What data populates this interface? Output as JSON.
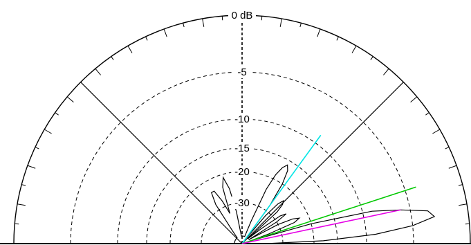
{
  "chart_data": {
    "type": "polar",
    "title": "",
    "angle_range_deg": [
      -90,
      90
    ],
    "rings": [
      {
        "label": "0 dB",
        "value": 0
      },
      {
        "label": "-5",
        "value": -5
      },
      {
        "label": "-10",
        "value": -10
      },
      {
        "label": "-15",
        "value": -15
      },
      {
        "label": "-20",
        "value": -20
      },
      {
        "label": "-30",
        "value": -30
      }
    ],
    "radial_lines_deg": [
      -45,
      0,
      45
    ],
    "pattern": {
      "points": [
        [
          90,
          -34
        ],
        [
          88,
          -18
        ],
        [
          86,
          -9
        ],
        [
          84,
          -5
        ],
        [
          82,
          -3
        ],
        [
          80,
          -3.5
        ],
        [
          78,
          -6
        ],
        [
          76,
          -9
        ],
        [
          74,
          -20
        ],
        [
          72,
          -38
        ],
        [
          70,
          -33
        ],
        [
          68,
          -25
        ],
        [
          66,
          -23
        ],
        [
          64,
          -25
        ],
        [
          62,
          -30
        ],
        [
          60,
          -38
        ],
        [
          58,
          -30
        ],
        [
          56,
          -26
        ],
        [
          54,
          -28
        ],
        [
          52,
          -34
        ],
        [
          50,
          -38
        ],
        [
          48,
          -28
        ],
        [
          46,
          -25
        ],
        [
          44,
          -24
        ],
        [
          42,
          -26
        ],
        [
          40,
          -31
        ],
        [
          38,
          -38
        ],
        [
          36,
          -28
        ],
        [
          34,
          -20
        ],
        [
          32,
          -17
        ],
        [
          30,
          -16
        ],
        [
          28,
          -17
        ],
        [
          26,
          -19
        ],
        [
          24,
          -24
        ],
        [
          22,
          -34
        ],
        [
          20,
          -38
        ],
        [
          15,
          -38
        ],
        [
          10,
          -38
        ],
        [
          5,
          -38
        ],
        [
          0,
          -38
        ],
        [
          -5,
          -38
        ],
        [
          -10,
          -32
        ],
        [
          -13,
          -25
        ],
        [
          -16,
          -21
        ],
        [
          -19,
          -24
        ],
        [
          -22,
          -32
        ],
        [
          -25,
          -28
        ],
        [
          -28,
          -24
        ],
        [
          -31,
          -24
        ],
        [
          -34,
          -28
        ],
        [
          -37,
          -36
        ],
        [
          -40,
          -38
        ],
        [
          -50,
          -38
        ],
        [
          -60,
          -38
        ],
        [
          -70,
          -38
        ],
        [
          -80,
          -38
        ],
        [
          -90,
          -38
        ]
      ]
    },
    "markers": [
      {
        "angle_deg": 36,
        "value": -9,
        "color": "#00e5e5"
      },
      {
        "angle_deg": 72,
        "value": -4,
        "color": "#00c800"
      },
      {
        "angle_deg": 78,
        "value": -6,
        "color": "#e600e6"
      }
    ]
  }
}
